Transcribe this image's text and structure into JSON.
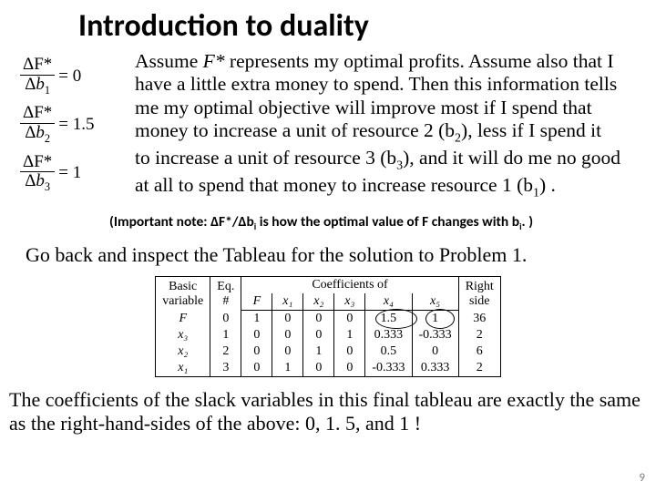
{
  "title": "Introduction to duality",
  "equations": [
    {
      "num": "ΔF*",
      "den_var": "b",
      "den_sub": "1",
      "rhs": "= 0"
    },
    {
      "num": "ΔF*",
      "den_var": "b",
      "den_sub": "2",
      "rhs": "= 1.5"
    },
    {
      "num": "ΔF*",
      "den_var": "b",
      "den_sub": "3",
      "rhs": "= 1"
    }
  ],
  "paragraph": {
    "p1a": "Assume ",
    "p1b": "F*",
    "p1c": " represents my optimal profits. Assume also that I have a little extra money to spend. Then this information tells me my optimal objective will improve most if I spend that money to increase a unit of resource 2 (b",
    "p1d": "2",
    "p1e": "),  less if I spend it to increase a unit of resource 3 (b",
    "p1f": "3",
    "p1g": "), and it will do me no good at all to spend that money to increase resource 1 (b",
    "p1h": "1",
    "p1i": ") ."
  },
  "note": {
    "a": "(Important note: ΔF*/Δb",
    "b": "i",
    "c": " is how the optimal value of F changes with b",
    "d": "i",
    "e": ". )"
  },
  "goback": "Go back and inspect the Tableau for the solution to Problem 1.",
  "tableau": {
    "header_top": {
      "basic": "Basic",
      "eq": "Eq.",
      "coeff_span": "Coefficients of",
      "right": "Right"
    },
    "header_bot": {
      "basic": "variable",
      "eq": "#",
      "cols": [
        "F",
        "x₁",
        "x₂",
        "x₃",
        "x₄",
        "x₅"
      ],
      "right": "side"
    },
    "rows": [
      {
        "bv": "F",
        "eq": "0",
        "c": [
          "1",
          "0",
          "0",
          "0",
          "1.5",
          "1"
        ],
        "rs": "36",
        "circle_idx": [
          4,
          5
        ]
      },
      {
        "bv": "x₃",
        "eq": "1",
        "c": [
          "0",
          "0",
          "0",
          "1",
          "0.333",
          "-0.333"
        ],
        "rs": "2",
        "circle_idx": []
      },
      {
        "bv": "x₂",
        "eq": "2",
        "c": [
          "0",
          "0",
          "1",
          "0",
          "0.5",
          "0"
        ],
        "rs": "6",
        "circle_idx": []
      },
      {
        "bv": "x₁",
        "eq": "3",
        "c": [
          "0",
          "1",
          "0",
          "0",
          "-0.333",
          "0.333"
        ],
        "rs": "2",
        "circle_idx": []
      }
    ],
    "colors": {
      "border": "#000000",
      "bg": "#ffffff"
    }
  },
  "bottom": "The coefficients of the slack variables in this final tableau are exactly the same as the right-hand-sides of the above: 0, 1. 5, and 1 !",
  "pagenum": "9",
  "style": {
    "title_font": "Calibri",
    "title_weight": 700,
    "title_size_pt": 26,
    "body_font": "Times New Roman",
    "body_size_pt": 16,
    "note_font": "Calibri",
    "note_weight": 700,
    "note_size_pt": 12,
    "bg": "#ffffff",
    "text": "#000000",
    "pagenum_color": "#7f7f7f",
    "slide_w": 720,
    "slide_h": 540
  }
}
